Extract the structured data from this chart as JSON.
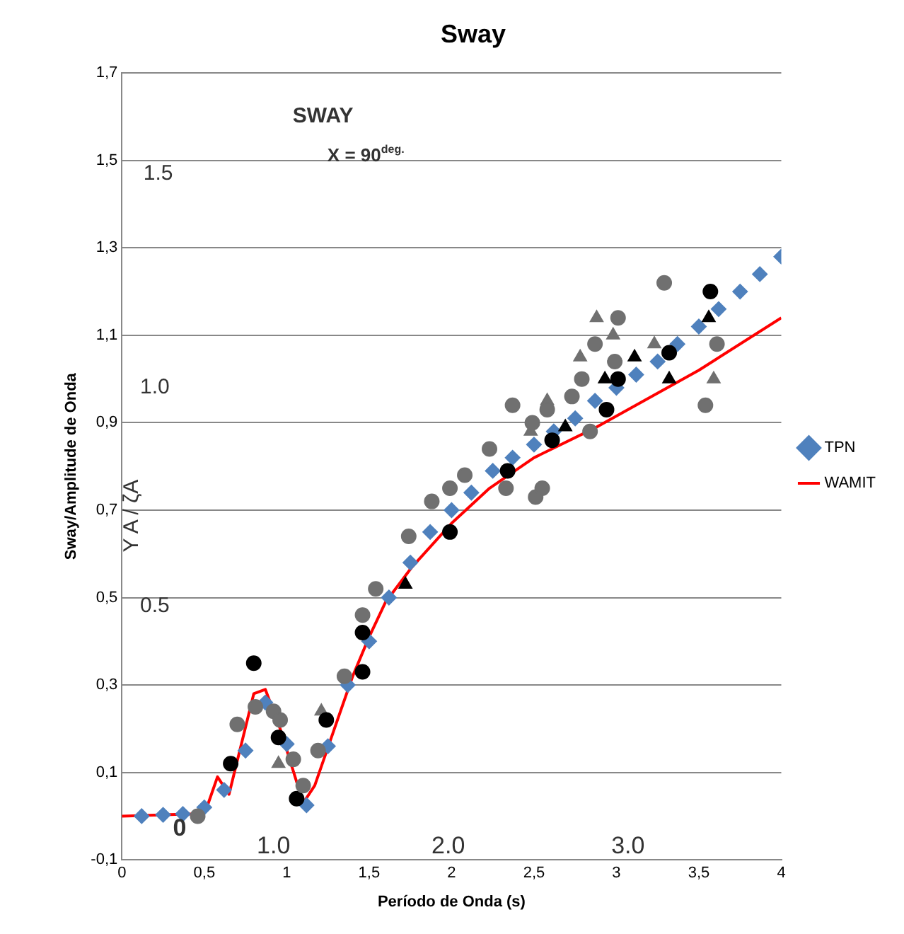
{
  "chart_data": {
    "type": "scatter",
    "title": "Sway",
    "xlabel": "Período de Onda (s)",
    "ylabel": "Sway/Amplitude de Onda",
    "xlim": [
      0,
      4
    ],
    "xticks": [
      0,
      {
        "value": 0.5,
        "label": "0,5"
      },
      1,
      {
        "value": 1.5,
        "label": "1,5"
      },
      2,
      {
        "value": 2.5,
        "label": "2,5"
      },
      3,
      {
        "value": 3.5,
        "label": "3,5"
      },
      4
    ],
    "ylim": [
      -0.1,
      1.7
    ],
    "yticks": [
      {
        "value": -0.1,
        "label": "-0,1"
      },
      {
        "value": 0.1,
        "label": "0,1"
      },
      {
        "value": 0.3,
        "label": "0,3"
      },
      {
        "value": 0.5,
        "label": "0,5"
      },
      {
        "value": 0.7,
        "label": "0,7"
      },
      {
        "value": 0.9,
        "label": "0,9"
      },
      {
        "value": 1.1,
        "label": "1,1"
      },
      {
        "value": 1.3,
        "label": "1,3"
      },
      {
        "value": 1.5,
        "label": "1,5"
      },
      {
        "value": 1.7,
        "label": "1,7"
      }
    ],
    "grid": "y",
    "legend": "right",
    "series": [
      {
        "color": "#707070",
        "marker": "circle",
        "x": [
          2.33,
          2.37,
          2.58,
          2.49,
          2.79,
          2.73,
          2.87,
          2.99,
          3.01,
          3.29,
          3.61,
          3.54,
          2.84,
          2.51,
          2.55,
          2.23,
          2.08,
          1.99,
          1.88,
          1.74,
          1.54,
          1.46,
          0.7,
          0.81,
          0.92,
          0.96,
          1.04,
          1.1,
          1.19,
          1.35,
          0.46
        ],
        "values": [
          0.75,
          0.94,
          0.93,
          0.9,
          1.0,
          0.96,
          1.08,
          1.04,
          1.14,
          1.22,
          1.08,
          0.94,
          0.88,
          0.73,
          0.75,
          0.84,
          0.78,
          0.75,
          0.72,
          0.64,
          0.52,
          0.46,
          0.21,
          0.25,
          0.24,
          0.22,
          0.13,
          0.07,
          0.15,
          0.32,
          0.0
        ]
      },
      {
        "color": "#000000",
        "marker": "circle",
        "x": [
          3.57,
          3.32,
          3.01,
          2.94,
          2.61,
          2.34,
          1.99,
          1.46,
          1.46,
          0.8,
          0.66,
          0.95,
          1.06,
          1.24
        ],
        "values": [
          1.2,
          1.06,
          1.0,
          0.93,
          0.86,
          0.79,
          0.65,
          0.42,
          0.33,
          0.35,
          0.12,
          0.18,
          0.04,
          0.22
        ]
      },
      {
        "color": "#707070",
        "marker": "triangle",
        "x": [
          2.88,
          2.98,
          3.23,
          2.78,
          2.58,
          3.59,
          2.48,
          0.95,
          1.21
        ],
        "values": [
          1.14,
          1.1,
          1.08,
          1.05,
          0.95,
          1.0,
          0.88,
          0.12,
          0.24
        ]
      },
      {
        "color": "#000000",
        "marker": "triangle",
        "x": [
          3.56,
          3.11,
          2.93,
          3.32,
          2.69,
          1.72
        ],
        "values": [
          1.14,
          1.05,
          1.0,
          1.0,
          0.89,
          0.53
        ]
      },
      {
        "name": "TPN",
        "color": "#4f81bd",
        "marker": "diamond",
        "x": [
          0.12,
          0.25,
          0.37,
          0.5,
          0.62,
          0.75,
          0.87,
          1.0,
          1.12,
          1.25,
          1.37,
          1.5,
          1.62,
          1.75,
          1.87,
          2.0,
          2.12,
          2.25,
          2.37,
          2.5,
          2.62,
          2.75,
          2.87,
          3.0,
          3.12,
          3.25,
          3.37,
          3.5,
          3.62,
          3.75,
          3.87,
          4.0
        ],
        "values": [
          0.0,
          0.003,
          0.005,
          0.02,
          0.06,
          0.15,
          0.26,
          0.165,
          0.025,
          0.16,
          0.3,
          0.4,
          0.5,
          0.58,
          0.65,
          0.7,
          0.74,
          0.79,
          0.82,
          0.85,
          0.88,
          0.91,
          0.95,
          0.98,
          1.01,
          1.04,
          1.08,
          1.12,
          1.16,
          1.2,
          1.24,
          1.28
        ]
      },
      {
        "name": "WAMIT",
        "type": "line",
        "color": "#ff0000",
        "marker": "none",
        "x": [
          0,
          0.43,
          0.52,
          0.58,
          0.65,
          0.8,
          0.87,
          0.96,
          1.1,
          1.17,
          1.28,
          1.4,
          1.5,
          1.6,
          1.76,
          2.0,
          2.23,
          2.5,
          2.88,
          3.5,
          4.0
        ],
        "values": [
          0.0,
          0.005,
          0.025,
          0.09,
          0.05,
          0.28,
          0.29,
          0.2,
          0.03,
          0.07,
          0.19,
          0.32,
          0.41,
          0.49,
          0.57,
          0.67,
          0.75,
          0.82,
          0.89,
          1.02,
          1.14
        ]
      }
    ],
    "annotations": [
      "SWAY",
      "X = 90$^{deg.}$",
      "1.5",
      "1.0",
      "0.5",
      "0",
      "Y A / ζA",
      "1.0",
      "2.0",
      "3.0"
    ]
  }
}
